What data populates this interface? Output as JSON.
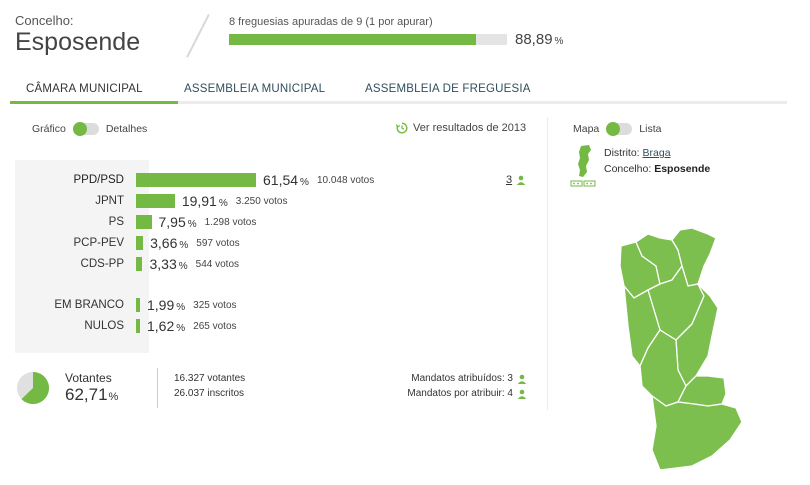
{
  "header": {
    "label": "Concelho:",
    "name": "Esposende",
    "progress_text": "8 freguesias apuradas de 9 (1 por apurar)",
    "progress_value": "88,89",
    "progress_unit": "%",
    "progress_fraction": 0.8889
  },
  "tabs": [
    {
      "label": "CÂMARA MUNICIPAL",
      "active": true
    },
    {
      "label": "ASSEMBLEIA MUNICIPAL",
      "active": false
    },
    {
      "label": "ASSEMBLEIA DE FREGUESIA",
      "active": false
    }
  ],
  "view_toggle": {
    "left": "Gráfico",
    "right": "Detalhes"
  },
  "map_toggle": {
    "left": "Mapa",
    "right": "Lista"
  },
  "ver_link": "Ver resultados de 2013",
  "results": [
    {
      "party": "PPD/PSD",
      "pct": "61,54",
      "pct_value": 61.54,
      "votes": "10.048 votos",
      "bold": true
    },
    {
      "party": "JPNT",
      "pct": "19,91",
      "pct_value": 19.91,
      "votes": "3.250 votos",
      "bold": false
    },
    {
      "party": "PS",
      "pct": "7,95",
      "pct_value": 7.95,
      "votes": "1.298 votos",
      "bold": false
    },
    {
      "party": "PCP-PEV",
      "pct": "3,66",
      "pct_value": 3.66,
      "votes": "597 votos",
      "bold": false
    },
    {
      "party": "CDS-PP",
      "pct": "3,33",
      "pct_value": 3.33,
      "votes": "544 votos",
      "bold": false
    },
    {
      "party": "EM BRANCO",
      "pct": "1,99",
      "pct_value": 1.99,
      "votes": "325 votos",
      "bold": false
    },
    {
      "party": "NULOS",
      "pct": "1,62",
      "pct_value": 1.62,
      "votes": "265 votos",
      "bold": false
    }
  ],
  "pct_unit": "%",
  "mandatos_winner": "3",
  "votantes": {
    "label": "Votantes",
    "pct": "62,71",
    "unit": "%",
    "fraction": 0.6271,
    "votantes": "16.327 votantes",
    "inscritos": "26.037 inscritos"
  },
  "mandatos": {
    "atribuidos": "Mandatos atribuídos: 3",
    "por_atribuir": "Mandatos por atribuir: 4"
  },
  "location": {
    "distrito_label": "Distrito:",
    "distrito": "Braga",
    "concelho_label": "Concelho:",
    "concelho": "Esposende"
  },
  "colors": {
    "accent": "#74b944",
    "map_fill": "#7dbf4f",
    "track": "#e4e4e4"
  }
}
